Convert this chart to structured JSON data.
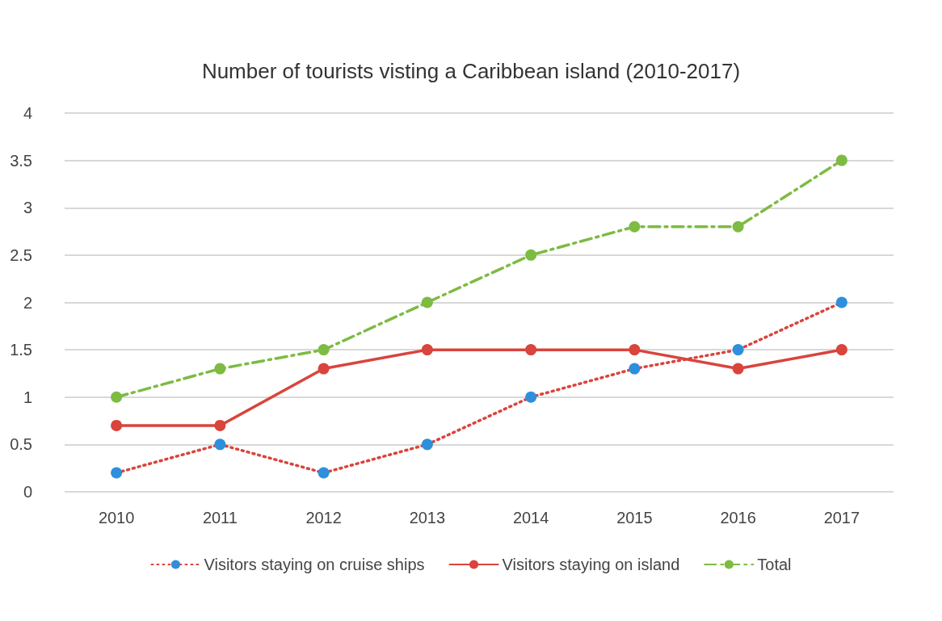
{
  "chart_data": {
    "type": "line",
    "title": "Number of tourists visting a Caribbean island (2010-2017)",
    "categories": [
      "2010",
      "2011",
      "2012",
      "2013",
      "2014",
      "2015",
      "2016",
      "2017"
    ],
    "series": [
      {
        "name": "Visitors staying on cruise ships",
        "color": "#d9443c",
        "colors": [
          "#2e8fdc",
          "#2e8fdc",
          "#2e8fdc",
          "#2e8fdc",
          "#2e8fdc",
          "#2e8fdc",
          "#2e8fdc",
          "#2e8fdc"
        ],
        "line_style": "dotted",
        "values": [
          0.2,
          0.5,
          0.2,
          0.5,
          1.0,
          1.3,
          1.5,
          2.0
        ]
      },
      {
        "name": "Visitors staying on island",
        "color": "#d9443c",
        "line_style": "solid",
        "values": [
          0.7,
          0.7,
          1.3,
          1.5,
          1.5,
          1.5,
          1.3,
          1.5
        ]
      },
      {
        "name": "Total",
        "color": "#7dbb42",
        "line_style": "dashed",
        "values": [
          1.0,
          1.3,
          1.5,
          2.0,
          2.5,
          2.8,
          2.8,
          3.5
        ]
      }
    ],
    "ylim": [
      0,
      4
    ],
    "yticks": [
      0,
      0.5,
      1,
      1.5,
      2,
      2.5,
      3,
      3.5,
      4
    ],
    "grid": "y",
    "legend": "bottom",
    "marker": "circle"
  }
}
